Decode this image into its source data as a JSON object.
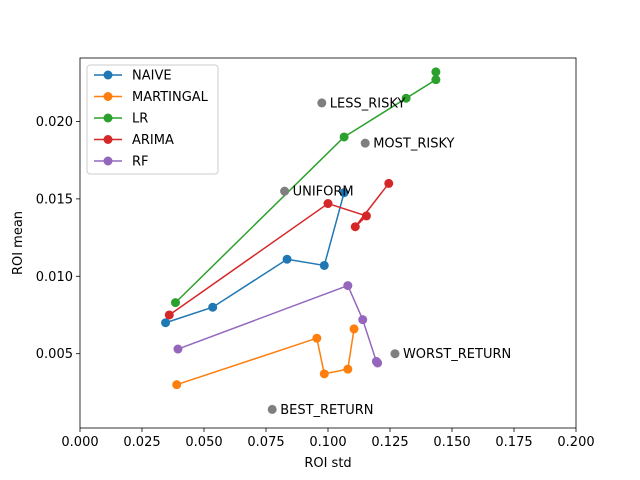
{
  "chart_data": {
    "type": "scatter",
    "xlabel": "ROI std",
    "ylabel": "ROI mean",
    "xlim": [
      0.0,
      0.2
    ],
    "ylim": [
      0.0002,
      0.0241
    ],
    "x_ticks": [
      0.0,
      0.025,
      0.05,
      0.075,
      0.1,
      0.125,
      0.15,
      0.175,
      0.2
    ],
    "x_tick_labels": [
      "0.000",
      "0.025",
      "0.050",
      "0.075",
      "0.100",
      "0.125",
      "0.150",
      "0.175",
      "0.200"
    ],
    "y_ticks": [
      0.005,
      0.01,
      0.015,
      0.02
    ],
    "y_tick_labels": [
      "0.005",
      "0.010",
      "0.015",
      "0.020"
    ],
    "grid": false,
    "legend_position": "top-left",
    "series": [
      {
        "name": "NAIVE",
        "color": "#1f77b4",
        "points": [
          [
            0.0345,
            0.007
          ],
          [
            0.0535,
            0.008
          ],
          [
            0.0835,
            0.0111
          ],
          [
            0.0985,
            0.0107
          ],
          [
            0.1065,
            0.0154
          ]
        ]
      },
      {
        "name": "MARTINGAL",
        "color": "#ff7f0e",
        "points": [
          [
            0.039,
            0.003
          ],
          [
            0.0955,
            0.006
          ],
          [
            0.0985,
            0.0037
          ],
          [
            0.108,
            0.004
          ],
          [
            0.1105,
            0.0066
          ]
        ]
      },
      {
        "name": "LR",
        "color": "#2ca02c",
        "points": [
          [
            0.0385,
            0.0083
          ],
          [
            0.1065,
            0.019
          ],
          [
            0.1315,
            0.0215
          ],
          [
            0.1435,
            0.0227
          ],
          [
            0.1435,
            0.0232
          ]
        ]
      },
      {
        "name": "ARIMA",
        "color": "#d62728",
        "points": [
          [
            0.036,
            0.0075
          ],
          [
            0.1,
            0.0147
          ],
          [
            0.1155,
            0.0139
          ],
          [
            0.111,
            0.0132
          ],
          [
            0.1245,
            0.016
          ]
        ]
      },
      {
        "name": "RF",
        "color": "#9467bd",
        "points": [
          [
            0.0395,
            0.0053
          ],
          [
            0.108,
            0.0094
          ],
          [
            0.114,
            0.0072
          ],
          [
            0.1195,
            0.0045
          ],
          [
            0.12,
            0.0044
          ]
        ]
      }
    ],
    "annotations": [
      {
        "label": "LESS_RISKY",
        "color": "#7f7f7f",
        "x": 0.0975,
        "y": 0.0212
      },
      {
        "label": "MOST_RISKY",
        "color": "#7f7f7f",
        "x": 0.115,
        "y": 0.0186
      },
      {
        "label": "UNIFORM",
        "color": "#7f7f7f",
        "x": 0.0825,
        "y": 0.0155
      },
      {
        "label": "WORST_RETURN",
        "color": "#7f7f7f",
        "x": 0.127,
        "y": 0.005
      },
      {
        "label": "BEST_RETURN",
        "color": "#7f7f7f",
        "x": 0.0775,
        "y": 0.0014
      }
    ]
  }
}
